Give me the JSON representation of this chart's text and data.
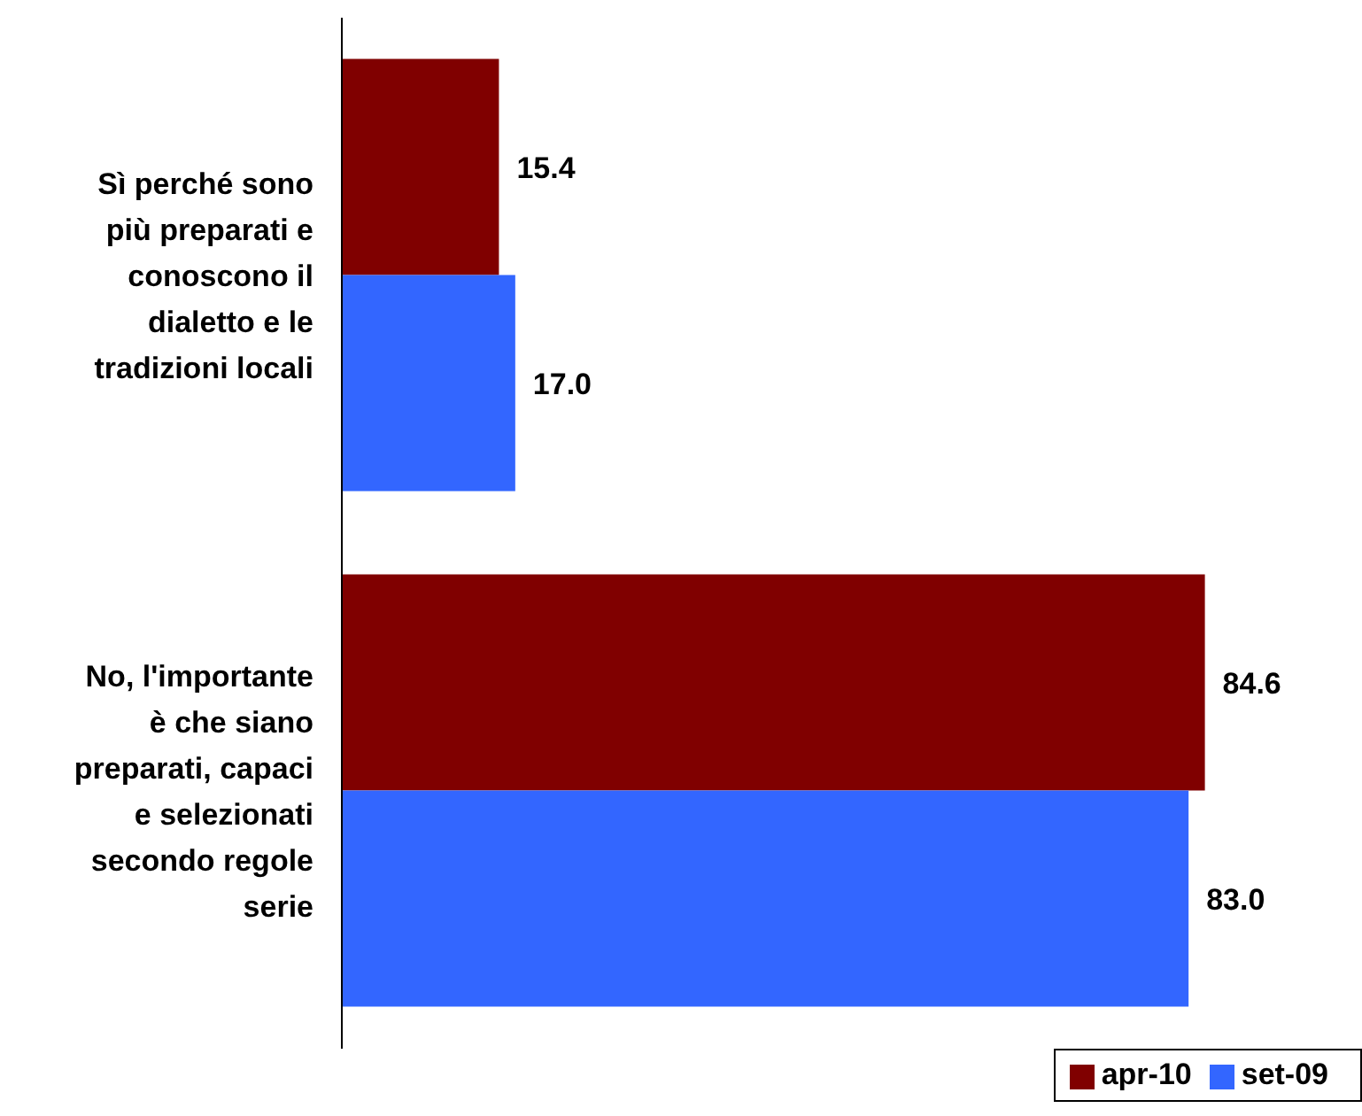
{
  "chart_data": {
    "type": "bar",
    "orientation": "horizontal",
    "categories": [
      "Sì perché sono più preparati e conoscono il dialetto e le tradizioni locali",
      "No, l'importante è che siano preparati, capaci e selezionati secondo regole serie"
    ],
    "series": [
      {
        "name": "apr-10",
        "color": "#800000",
        "values": [
          15.4,
          84.6
        ],
        "value_labels": [
          "15.4",
          "84.6"
        ]
      },
      {
        "name": "set-09",
        "color": "#3366ff",
        "values": [
          17.0,
          83.0
        ],
        "value_labels": [
          "17.0",
          "83.0"
        ]
      }
    ],
    "legend": "bottom right"
  }
}
